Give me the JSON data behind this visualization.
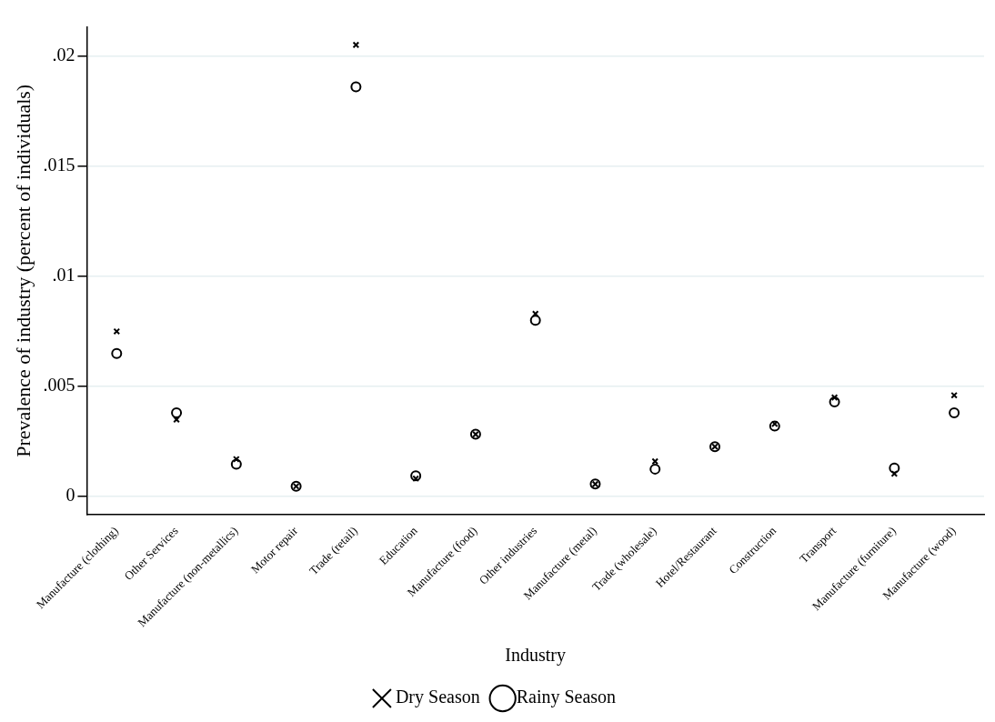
{
  "chart_data": {
    "type": "scatter",
    "xlabel": "Industry",
    "ylabel": "Prevalence of industry (percent of individuals)",
    "categories": [
      "Manufacture (clothing)",
      "Other Services",
      "Manufacture (non-metallics)",
      "Motor repair",
      "Trade (retail)",
      "Education",
      "Manufacture (food)",
      "Other industries",
      "Manufacture (metal)",
      "Trade (wholesale)",
      "Hotel/Restaurant",
      "Construction",
      "Transport",
      "Manufacture (furniture)",
      "Manufacture (wood)"
    ],
    "series": [
      {
        "name": "Dry Season",
        "color": "#000000",
        "marker": "cross",
        "values": [
          0.0075,
          0.0035,
          0.0017,
          0.00047,
          0.0205,
          0.00082,
          0.00283,
          0.0083,
          0.00057,
          0.0016,
          0.00227,
          0.0033,
          0.0045,
          0.00104,
          0.0046
        ]
      },
      {
        "name": "Rainy Season",
        "color": "#000000",
        "marker": "circle",
        "values": [
          0.0065,
          0.0038,
          0.00147,
          0.00047,
          0.0186,
          0.00095,
          0.00283,
          0.008,
          0.00057,
          0.00125,
          0.00227,
          0.0032,
          0.0043,
          0.0013,
          0.0038
        ]
      }
    ],
    "ylim": [
      -0.0008,
      0.0213
    ],
    "yticks": [
      {
        "value": 0,
        "label": "0"
      },
      {
        "value": 0.005,
        "label": ".005"
      },
      {
        "value": 0.01,
        "label": ".01"
      },
      {
        "value": 0.015,
        "label": ".015"
      },
      {
        "value": 0.02,
        "label": ".02"
      }
    ],
    "grid": "y",
    "legend": "bottom"
  }
}
